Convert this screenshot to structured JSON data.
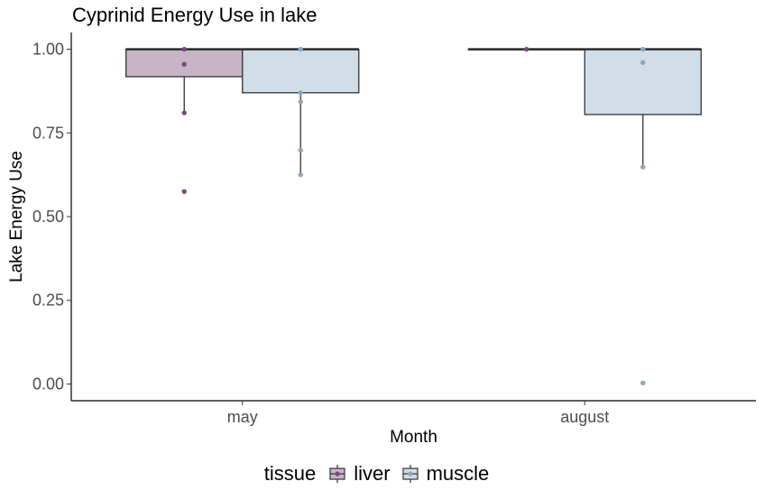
{
  "chart_data": {
    "type": "box",
    "title": "Cyprinid Energy Use in lake",
    "xlabel": "Month",
    "ylabel": "Lake Energy Use",
    "categories": [
      "may",
      "august"
    ],
    "ylim": [
      -0.05,
      1.05
    ],
    "yticks": [
      0.0,
      0.25,
      0.5,
      0.75,
      1.0
    ],
    "ytick_labels": [
      "0.00",
      "0.25",
      "0.50",
      "0.75",
      "1.00"
    ],
    "legend": {
      "title": "tissue",
      "position": "bottom"
    },
    "series": [
      {
        "name": "liver",
        "fill": "#c8b4c6",
        "point_color": "#7a4a78",
        "boxes": [
          {
            "category": "may",
            "min": 0.81,
            "q1": 0.918,
            "median": 1.0,
            "q3": 1.0,
            "max": 1.0,
            "outliers": [
              0.575
            ]
          },
          {
            "category": "august",
            "min": 1.0,
            "q1": 1.0,
            "median": 1.0,
            "q3": 1.0,
            "max": 1.0,
            "outliers": []
          }
        ],
        "points": [
          {
            "category": "may",
            "y": 1.0
          },
          {
            "category": "may",
            "y": 0.955
          },
          {
            "category": "may",
            "y": 0.81
          },
          {
            "category": "may",
            "y": 0.575
          },
          {
            "category": "august",
            "y": 1.0
          }
        ]
      },
      {
        "name": "muscle",
        "fill": "#d1dde7",
        "point_color": "#8aa6c0",
        "boxes": [
          {
            "category": "may",
            "min": 0.625,
            "q1": 0.87,
            "median": 1.0,
            "q3": 1.0,
            "max": 1.0,
            "outliers": []
          },
          {
            "category": "august",
            "min": 0.648,
            "q1": 0.805,
            "median": 1.0,
            "q3": 1.0,
            "max": 1.0,
            "outliers": [
              0.003
            ]
          }
        ],
        "points": [
          {
            "category": "may",
            "y": 1.0
          },
          {
            "category": "may",
            "y": 0.87
          },
          {
            "category": "may",
            "y": 0.843
          },
          {
            "category": "may",
            "y": 0.698
          },
          {
            "category": "may",
            "y": 0.625
          },
          {
            "category": "august",
            "y": 1.0
          },
          {
            "category": "august",
            "y": 0.96
          },
          {
            "category": "august",
            "y": 0.648
          },
          {
            "category": "august",
            "y": 0.003
          }
        ]
      }
    ]
  }
}
